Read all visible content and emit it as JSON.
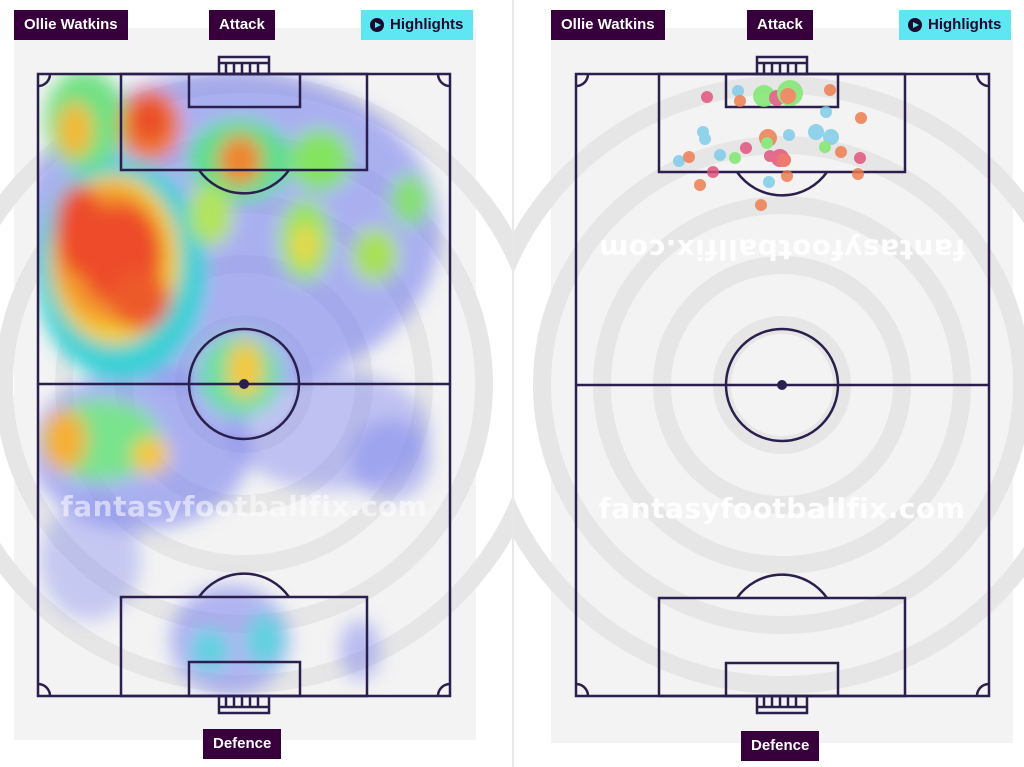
{
  "left_panel": {
    "player_name": "Ollie Watkins",
    "attack_label": "Attack",
    "highlights_label": "Highlights",
    "defence_label": "Defence",
    "watermark": "fantasyfootballfix.com",
    "view": "heatmap"
  },
  "right_panel": {
    "player_name": "Ollie Watkins",
    "attack_label": "Attack",
    "highlights_label": "Highlights",
    "defence_label": "Defence",
    "watermark_top": "fantasyfootballfix.com",
    "watermark_bottom": "fantasyfootballfix.com",
    "view": "shot-map"
  },
  "colors": {
    "label_bg": "#37003c",
    "highlights_bg": "#5ee7f3",
    "pitch_lines": "#2b1f4e",
    "shot_red": "#ee5f52",
    "shot_pink": "#e0507a",
    "shot_orange": "#ee7a4c",
    "shot_blue": "#7ccbea",
    "shot_green": "#7ce86b"
  }
}
